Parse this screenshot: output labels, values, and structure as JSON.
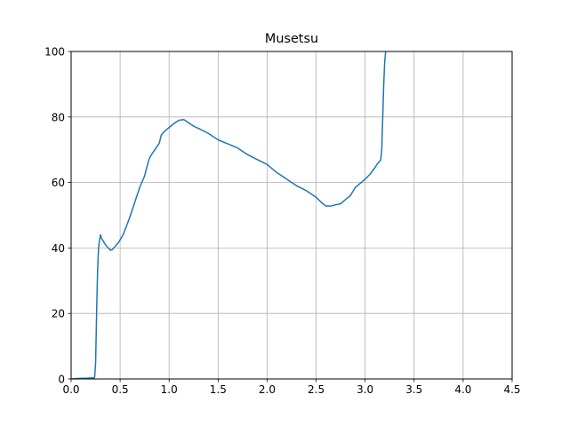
{
  "chart_data": {
    "type": "line",
    "title": "Musetsu",
    "xlabel": "",
    "ylabel": "",
    "xlim": [
      0,
      4.5
    ],
    "ylim": [
      0,
      100
    ],
    "grid": true,
    "x_ticks": [
      "0.0",
      "0.5",
      "1.0",
      "1.5",
      "2.0",
      "2.5",
      "3.0",
      "3.5",
      "4.0",
      "4.5"
    ],
    "y_ticks": [
      "0",
      "20",
      "40",
      "60",
      "80",
      "100"
    ],
    "series": [
      {
        "color": "#1f77b4",
        "x": [
          0.0,
          0.05,
          0.1,
          0.15,
          0.2,
          0.22,
          0.23,
          0.24,
          0.25,
          0.26,
          0.27,
          0.28,
          0.29,
          0.3,
          0.31,
          0.32,
          0.35,
          0.38,
          0.4,
          0.42,
          0.45,
          0.48,
          0.5,
          0.53,
          0.55,
          0.6,
          0.65,
          0.7,
          0.75,
          0.78,
          0.8,
          0.82,
          0.85,
          0.9,
          0.92,
          0.95,
          1.0,
          1.05,
          1.1,
          1.15,
          1.2,
          1.25,
          1.3,
          1.4,
          1.5,
          1.6,
          1.7,
          1.8,
          1.9,
          2.0,
          2.1,
          2.2,
          2.3,
          2.4,
          2.5,
          2.55,
          2.6,
          2.65,
          2.7,
          2.75,
          2.8,
          2.85,
          2.9,
          3.0,
          3.05,
          3.1,
          3.12,
          3.15,
          3.16,
          3.17,
          3.18,
          3.19,
          3.2,
          3.21
        ],
        "values": [
          0.0,
          0.1,
          0.2,
          0.2,
          0.3,
          0.3,
          0.3,
          0.5,
          5.0,
          20.0,
          33.0,
          40.0,
          42.5,
          44.0,
          43.0,
          42.5,
          41.0,
          40.0,
          39.3,
          39.5,
          40.5,
          41.5,
          42.5,
          44.0,
          45.5,
          49.5,
          54.0,
          58.5,
          62.0,
          65.5,
          67.5,
          68.5,
          69.8,
          72.0,
          74.5,
          75.5,
          76.8,
          78.0,
          79.0,
          79.2,
          78.2,
          77.2,
          76.5,
          75.0,
          73.0,
          71.8,
          70.5,
          68.5,
          67.0,
          65.5,
          63.0,
          61.0,
          59.0,
          57.5,
          55.5,
          54.0,
          52.8,
          52.8,
          53.2,
          53.5,
          54.8,
          56.0,
          58.5,
          61.0,
          62.5,
          64.5,
          65.5,
          66.5,
          67.0,
          70.0,
          80.0,
          90.0,
          97.0,
          100.0
        ]
      }
    ]
  }
}
